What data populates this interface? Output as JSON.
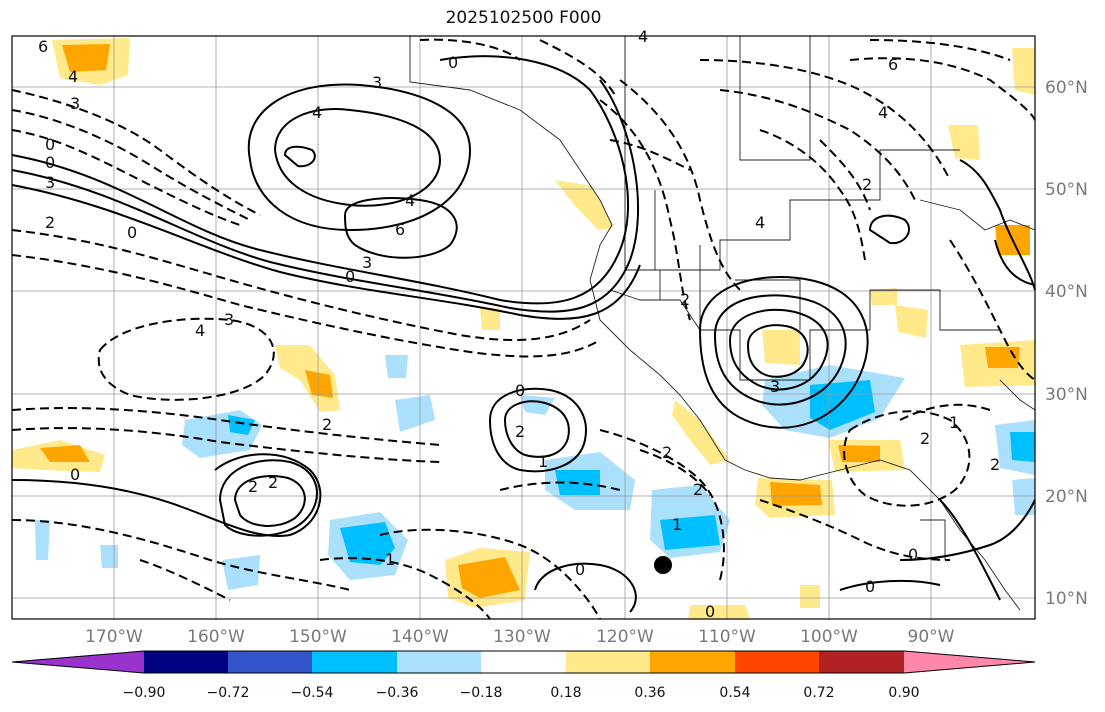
{
  "title": "2025102500 F000",
  "lon_labels": [
    "170°W",
    "160°W",
    "150°W",
    "140°W",
    "130°W",
    "120°W",
    "110°W",
    "100°W",
    "90°W"
  ],
  "lat_labels": [
    "60°N",
    "50°N",
    "40°N",
    "30°N",
    "20°N",
    "10°N"
  ],
  "colorbar": {
    "colors": [
      "#9933cc",
      "#000080",
      "#3355cc",
      "#00bfff",
      "#aae0fb",
      "#ffffff",
      "#ffe98a",
      "#ffa500",
      "#ff4500",
      "#b22222",
      "#ff88aa"
    ],
    "tick_labels": [
      "−0.90",
      "−0.72",
      "−0.54",
      "−0.36",
      "−0.18",
      "0.18",
      "0.36",
      "0.54",
      "0.72",
      "0.90"
    ]
  },
  "contour_labels": [
    "6",
    "4",
    "3",
    "0",
    "0",
    "2",
    "4",
    "3",
    "3",
    "0",
    "4",
    "4",
    "4",
    "6",
    "6",
    "4",
    "0",
    "3",
    "0",
    "2",
    "3",
    "4",
    "2",
    "0",
    "2",
    "2",
    "0",
    "2",
    "1",
    "2",
    "3",
    "2",
    "2",
    "1",
    "0",
    "1",
    "2",
    "0",
    "0",
    "0",
    "1",
    "2"
  ],
  "marker": "storm-center-dot"
}
